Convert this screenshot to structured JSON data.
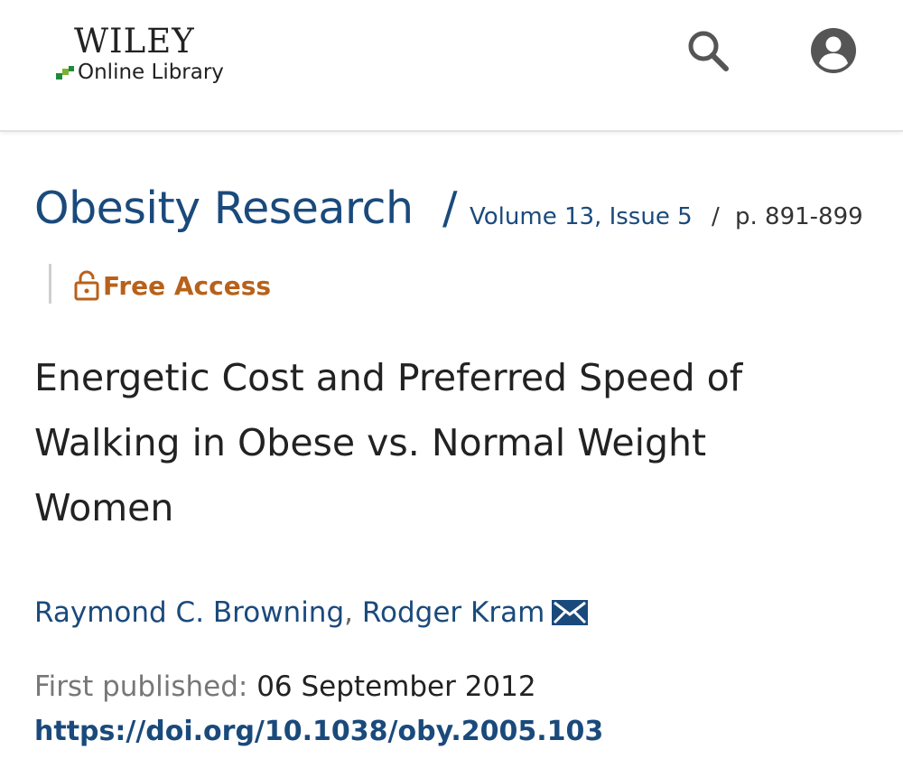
{
  "brand": {
    "name": "WILEY",
    "subtitle": "Online Library",
    "square_colors": [
      "#1f8a3c",
      "#7ab32e",
      "#1f8a3c"
    ]
  },
  "header": {
    "search_icon": "search-icon",
    "account_icon": "account-circle-icon"
  },
  "breadcrumb": {
    "journal": "Obesity Research",
    "separator": "/",
    "issue": "Volume 13, Issue 5",
    "issue_separator": "/",
    "pages": "p. 891-899"
  },
  "access": {
    "icon": "lock-open-icon",
    "label": "Free Access"
  },
  "article": {
    "title": "Energetic Cost and Preferred Speed of Walking in Obese vs. Normal Weight Women",
    "authors": [
      {
        "name": "Raymond C. Browning"
      },
      {
        "name": "Rodger Kram"
      }
    ],
    "author_separator": ",",
    "mail_icon": "envelope-icon",
    "published_label": "First published:",
    "published_date": "06 September 2012",
    "doi": "https://doi.org/10.1038/oby.2005.103"
  },
  "colors": {
    "link_blue": "#1a4a7c",
    "access_orange": "#b8611a",
    "text_dark": "#222222",
    "text_muted": "#777777"
  }
}
